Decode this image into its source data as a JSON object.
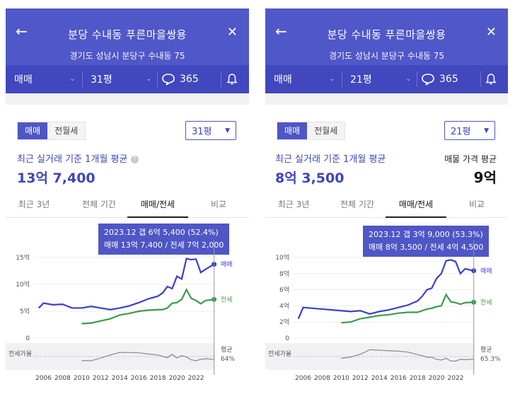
{
  "panels": [
    {
      "title": "분당 수내동 푸른마을쌍용",
      "address": "경기도 성남시 분당구 수내동 75",
      "deal_type": "매매",
      "area": "31평",
      "comment_count": "365",
      "segment": [
        "매매",
        "전월세"
      ],
      "area_select": "31평",
      "avg_label": "최근 실거래 기준 1개월 평균",
      "avg_value": "13억 7,400",
      "listing_label": "",
      "listing_value": "",
      "tabs": [
        "최근 3년",
        "전체 기간",
        "매매/전세",
        "비교"
      ],
      "active_tab": 2,
      "tooltip_line1": "2023.12  갭 6억 5,400 (52.4%)",
      "tooltip_line2": "매매 13억 7,400 / 전세 7억 2,000",
      "y_ticks": [
        "15억",
        "10억",
        "5억",
        "0"
      ],
      "ratio_label": "전세가율",
      "avg_ratio_label": "평균",
      "avg_ratio": "64%",
      "sale_label": "매매",
      "jeonse_label": "전세",
      "x_ticks": [
        "2006",
        "2008",
        "2010",
        "2012",
        "2014",
        "2016",
        "2018",
        "2020",
        "2022"
      ],
      "chart_data": {
        "type": "line",
        "x": [
          2005.5,
          2006,
          2007,
          2008,
          2009,
          2010,
          2011,
          2012,
          2013,
          2014,
          2015,
          2016,
          2017,
          2018,
          2018.5,
          2019,
          2019.5,
          2020,
          2020.5,
          2021,
          2021.5,
          2022,
          2022.5,
          2023,
          2023.9
        ],
        "series": [
          {
            "name": "매매",
            "color": "#3a3fcf",
            "values": [
              5.6,
              6.5,
              6.2,
              6.3,
              5.6,
              5.6,
              5.9,
              5.6,
              5.3,
              5.6,
              6.0,
              6.6,
              7.3,
              7.8,
              8.4,
              9.6,
              9.2,
              11.5,
              11.0,
              14.8,
              14.6,
              14.7,
              12.2,
              12.8,
              13.74
            ]
          },
          {
            "name": "전세",
            "color": "#3e9a4a",
            "values": [
              null,
              null,
              null,
              null,
              null,
              2.7,
              2.8,
              3.2,
              3.6,
              4.3,
              4.6,
              5.0,
              5.2,
              5.3,
              5.3,
              5.6,
              6.5,
              6.6,
              7.2,
              9.0,
              7.4,
              7.0,
              6.4,
              7.0,
              7.2
            ]
          }
        ],
        "ylabel": "",
        "ylim": [
          0,
          15
        ],
        "xlim": [
          2005,
          2024
        ]
      }
    },
    {
      "title": "분당 수내동 푸른마을쌍용",
      "address": "경기도 성남시 분당구 수내동 75",
      "deal_type": "매매",
      "area": "21평",
      "comment_count": "365",
      "segment": [
        "매매",
        "전월세"
      ],
      "area_select": "21평",
      "avg_label": "최근 실거래 기준 1개월 평균",
      "avg_value": "8억 3,500",
      "listing_label": "매물 가격 평균",
      "listing_value": "9억",
      "tabs": [
        "최근 3년",
        "전체 기간",
        "매매/전세",
        "비교"
      ],
      "active_tab": 2,
      "tooltip_line1": "2023.12  갭 3억 9,000 (53.3%)",
      "tooltip_line2": "매매 8억 3,500 / 전세 4억 4,500",
      "y_ticks": [
        "10억",
        "8억",
        "6억",
        "4억",
        "2억",
        "0"
      ],
      "ratio_label": "전세가율",
      "avg_ratio_label": "평균",
      "avg_ratio": "65.3%",
      "sale_label": "매매",
      "jeonse_label": "전세",
      "x_ticks": [
        "2006",
        "2008",
        "2010",
        "2012",
        "2014",
        "2016",
        "2018",
        "2020",
        "2022"
      ],
      "chart_data": {
        "type": "line",
        "x": [
          2005.5,
          2006,
          2007,
          2008,
          2009,
          2010,
          2011,
          2012,
          2013,
          2014,
          2015,
          2016,
          2017,
          2018,
          2018.5,
          2019,
          2019.5,
          2020,
          2020.5,
          2021,
          2021.5,
          2022,
          2022.5,
          2023,
          2023.9
        ],
        "series": [
          {
            "name": "매매",
            "color": "#3a3fcf",
            "values": [
              2.4,
              3.8,
              3.7,
              3.6,
              3.5,
              3.4,
              3.3,
              3.4,
              3.0,
              3.3,
              3.5,
              3.8,
              4.1,
              4.6,
              5.2,
              6.0,
              6.2,
              7.4,
              8.0,
              9.6,
              9.7,
              9.5,
              8.0,
              8.6,
              8.35
            ]
          },
          {
            "name": "전세",
            "color": "#3e9a4a",
            "values": [
              null,
              null,
              null,
              null,
              null,
              1.9,
              2.0,
              2.4,
              2.6,
              2.8,
              2.9,
              3.1,
              3.2,
              3.2,
              3.4,
              3.6,
              3.7,
              3.9,
              4.0,
              5.4,
              4.5,
              4.4,
              4.2,
              4.4,
              4.45
            ]
          }
        ],
        "ylabel": "",
        "ylim": [
          0,
          10
        ],
        "xlim": [
          2005,
          2024
        ]
      }
    }
  ]
}
